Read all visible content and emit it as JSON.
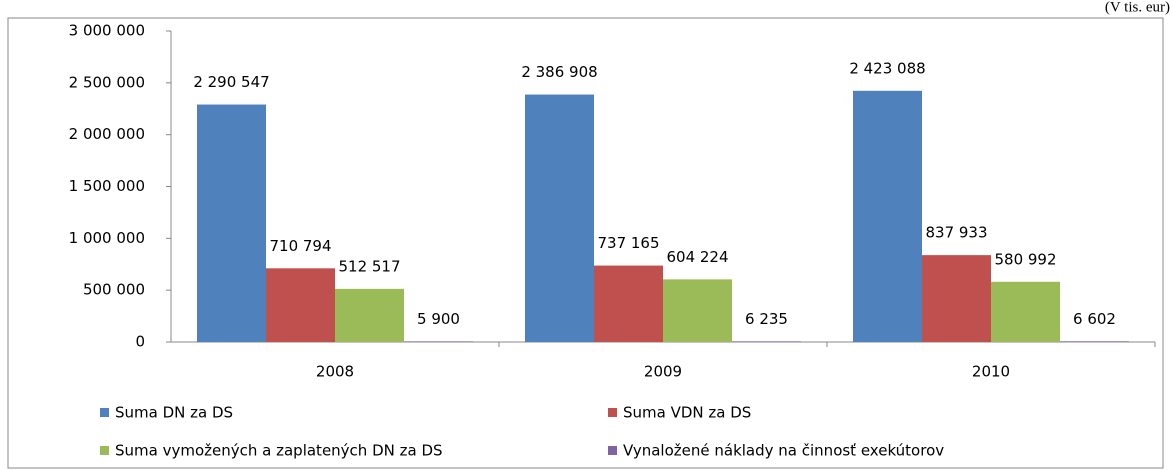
{
  "chart_data": {
    "type": "bar",
    "annotation": "(V tis. eur)",
    "categories": [
      "2008",
      "2009",
      "2010"
    ],
    "series": [
      {
        "name": "Suma DN za DS",
        "color": "#4f81bd",
        "values": [
          2290547,
          2386908,
          2423088
        ],
        "value_labels": [
          "2 290 547",
          "2 386 908",
          "2 423 088"
        ]
      },
      {
        "name": "Suma VDN za DS",
        "color": "#c0504d",
        "values": [
          710794,
          737165,
          837933
        ],
        "value_labels": [
          "710 794",
          "737 165",
          "837 933"
        ]
      },
      {
        "name": "Suma vymožených a zaplatených DN za DS",
        "color": "#9bbb59",
        "values": [
          512517,
          604224,
          580992
        ],
        "value_labels": [
          "512 517",
          "604 224",
          "580 992"
        ]
      },
      {
        "name": "Vynaložené náklady na činnosť exekútorov",
        "color": "#8064a2",
        "values": [
          5900,
          6235,
          6602
        ],
        "value_labels": [
          "5 900",
          "6 235",
          "6 602"
        ]
      }
    ],
    "ylim": [
      0,
      3000000
    ],
    "yticks": [
      0,
      {
        "value": 500000,
        "label": "500 000"
      },
      {
        "value": 1000000,
        "label": "1 000 000"
      },
      {
        "value": 1500000,
        "label": "1 500 000"
      },
      {
        "value": 2000000,
        "label": "2 000 000"
      },
      {
        "value": 2500000,
        "label": "2 500 000"
      },
      {
        "value": 3000000,
        "label": "3 000 000"
      }
    ],
    "grid": false,
    "legend": "bottom"
  }
}
